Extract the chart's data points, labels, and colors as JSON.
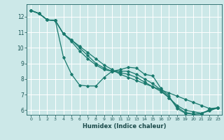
{
  "xlabel": "Humidex (Indice chaleur)",
  "bg_color": "#cce8e8",
  "grid_color": "#ffffff",
  "line_color": "#1a7a6e",
  "xlim": [
    -0.5,
    23.5
  ],
  "ylim": [
    5.7,
    12.8
  ],
  "yticks": [
    6,
    7,
    8,
    9,
    10,
    11,
    12
  ],
  "xticks": [
    0,
    1,
    2,
    3,
    4,
    5,
    6,
    7,
    8,
    9,
    10,
    11,
    12,
    13,
    14,
    15,
    16,
    17,
    18,
    19,
    20,
    21,
    22,
    23
  ],
  "series": [
    [
      12.4,
      12.2,
      11.8,
      11.75,
      9.4,
      8.3,
      7.6,
      7.55,
      7.55,
      8.1,
      8.5,
      8.6,
      8.75,
      8.7,
      8.3,
      8.2,
      7.4,
      6.9,
      6.1,
      5.8,
      5.75,
      5.75,
      6.05,
      6.15
    ],
    [
      12.4,
      12.2,
      11.8,
      11.75,
      10.9,
      10.5,
      10.1,
      9.7,
      9.3,
      8.9,
      8.6,
      8.3,
      8.1,
      7.9,
      7.7,
      7.5,
      7.3,
      7.1,
      6.9,
      6.7,
      6.5,
      6.3,
      6.1,
      6.15
    ],
    [
      12.4,
      12.2,
      11.8,
      11.75,
      10.9,
      10.5,
      10.0,
      9.5,
      9.0,
      8.7,
      8.5,
      8.4,
      8.3,
      8.1,
      7.8,
      7.5,
      7.2,
      6.8,
      6.3,
      6.0,
      5.9,
      5.8,
      5.95,
      6.15
    ],
    [
      12.4,
      12.2,
      11.8,
      11.75,
      10.9,
      10.4,
      9.8,
      9.3,
      8.9,
      8.6,
      8.5,
      8.5,
      8.5,
      8.3,
      8.0,
      7.7,
      7.3,
      6.8,
      6.2,
      5.85,
      5.75,
      5.8,
      6.0,
      6.15
    ]
  ]
}
